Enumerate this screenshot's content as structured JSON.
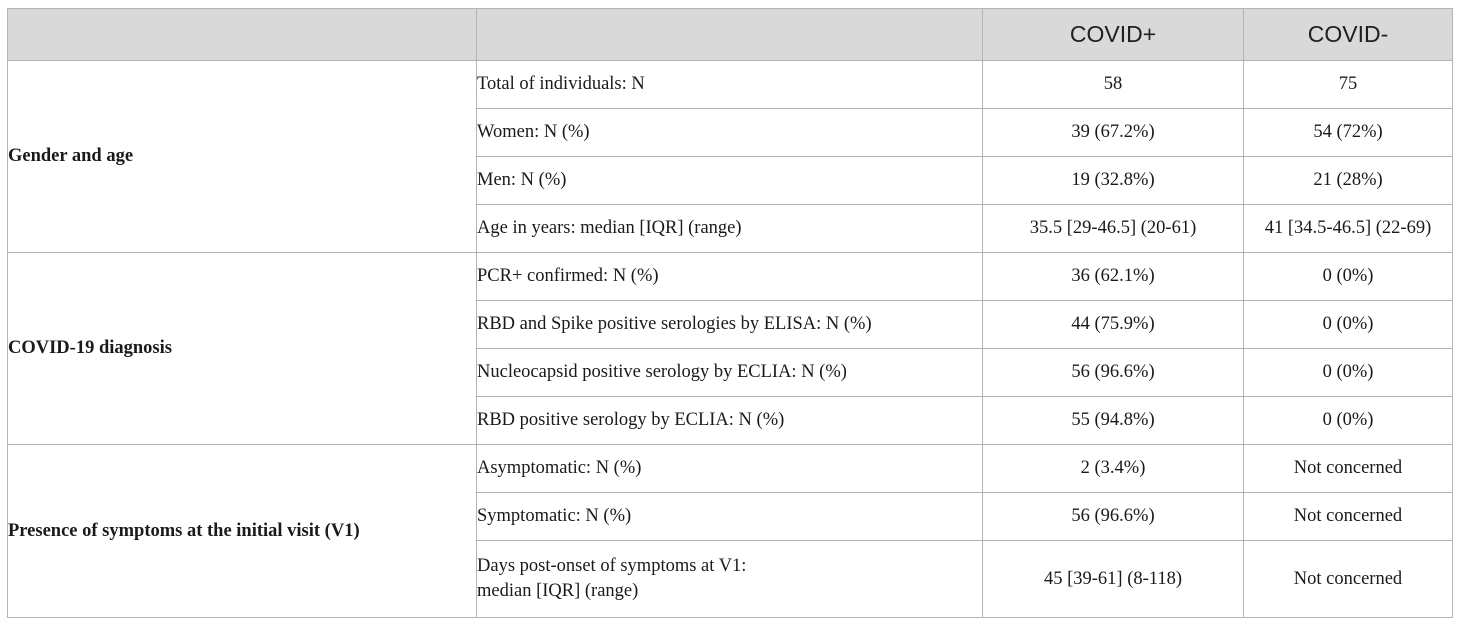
{
  "header": {
    "col_covid_pos": "COVID+",
    "col_covid_neg": "COVID-"
  },
  "groups": [
    {
      "name": "Gender and age",
      "rows": [
        {
          "label": "Total of individuals: N",
          "pos": "58",
          "neg": "75"
        },
        {
          "label": "Women: N (%)",
          "pos": "39 (67.2%)",
          "neg": "54 (72%)"
        },
        {
          "label": "Men: N (%)",
          "pos": "19 (32.8%)",
          "neg": "21 (28%)"
        },
        {
          "label": "Age in years: median [IQR] (range)",
          "pos": "35.5 [29-46.5] (20-61)",
          "neg": "41 [34.5-46.5] (22-69)"
        }
      ]
    },
    {
      "name": "COVID-19 diagnosis",
      "rows": [
        {
          "label": "PCR+ confirmed: N (%)",
          "pos": "36 (62.1%)",
          "neg": "0 (0%)"
        },
        {
          "label": "RBD and Spike positive serologies by ELISA: N (%)",
          "pos": "44 (75.9%)",
          "neg": "0 (0%)"
        },
        {
          "label": "Nucleocapsid positive serology by ECLIA: N (%)",
          "pos": "56 (96.6%)",
          "neg": "0 (0%)"
        },
        {
          "label": "RBD positive serology by ECLIA: N (%)",
          "pos": "55 (94.8%)",
          "neg": "0 (0%)"
        }
      ]
    },
    {
      "name": "Presence of symptoms at the initial visit (V1)",
      "rows": [
        {
          "label": "Asymptomatic: N (%)",
          "pos": "2 (3.4%)",
          "neg": "Not concerned"
        },
        {
          "label": "Symptomatic: N (%)",
          "pos": "56 (96.6%)",
          "neg": "Not concerned"
        },
        {
          "label": "Days post-onset of symptoms at V1:",
          "label_line2": "median [IQR] (range)",
          "pos": "45 [39-61] (8-118)",
          "neg": "Not concerned"
        }
      ]
    }
  ]
}
